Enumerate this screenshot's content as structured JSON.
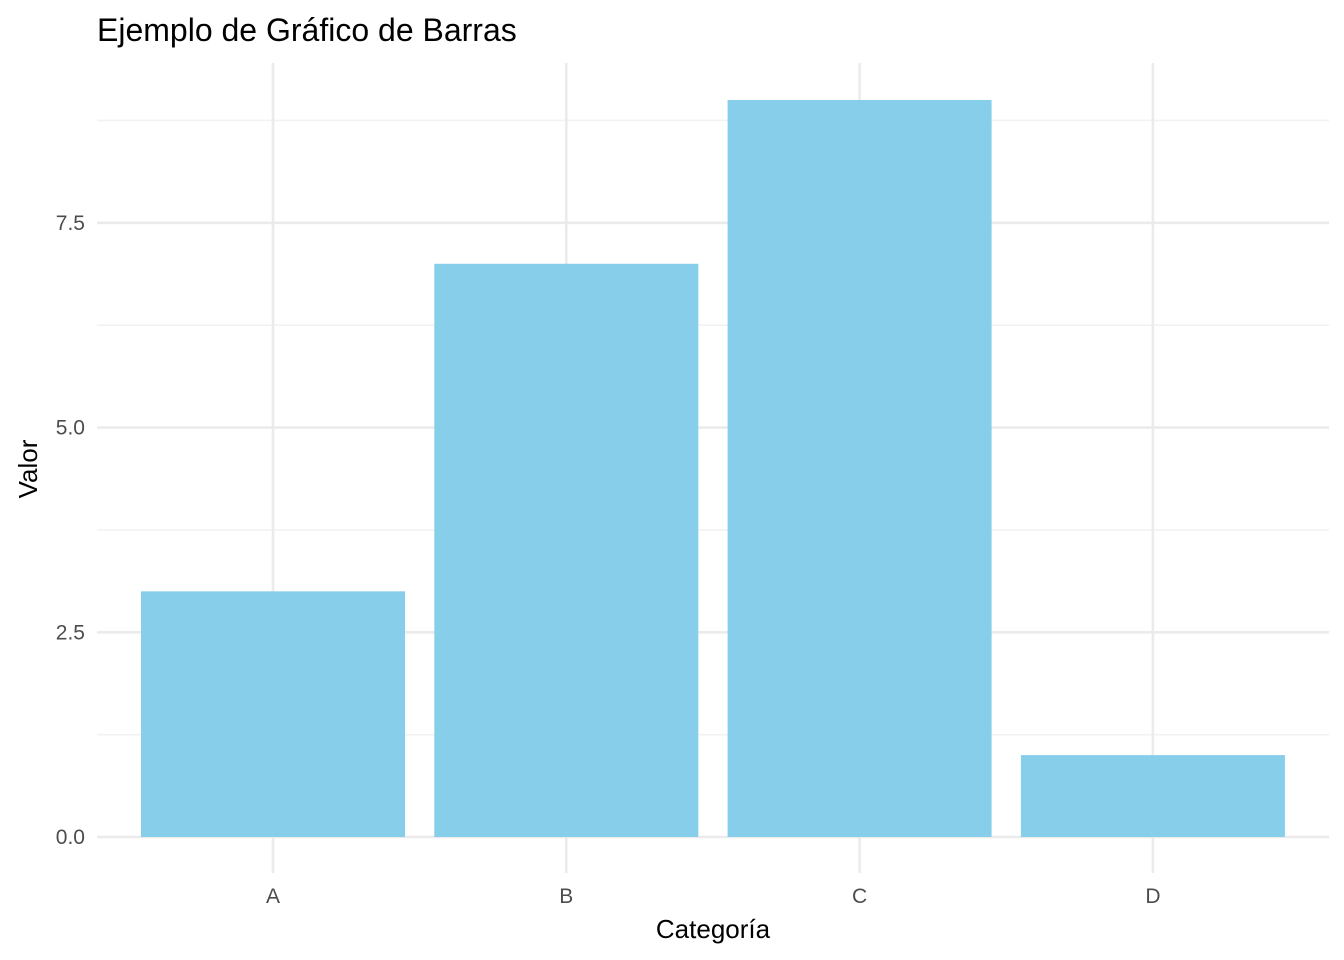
{
  "chart_data": {
    "type": "bar",
    "title": "Ejemplo de Gráfico de Barras",
    "xlabel": "Categoría",
    "ylabel": "Valor",
    "categories": [
      "A",
      "B",
      "C",
      "D"
    ],
    "values": [
      3,
      7,
      9,
      1
    ],
    "ylim": [
      0,
      9.45
    ],
    "yticks": [
      0.0,
      2.5,
      5.0,
      7.5
    ],
    "ytick_labels": [
      "0.0",
      "2.5",
      "5.0",
      "7.5"
    ],
    "y_minor_ticks": [
      1.25,
      3.75,
      6.25,
      8.75
    ],
    "grid": true,
    "legend": "none",
    "bar_color": "#87CEEB"
  }
}
